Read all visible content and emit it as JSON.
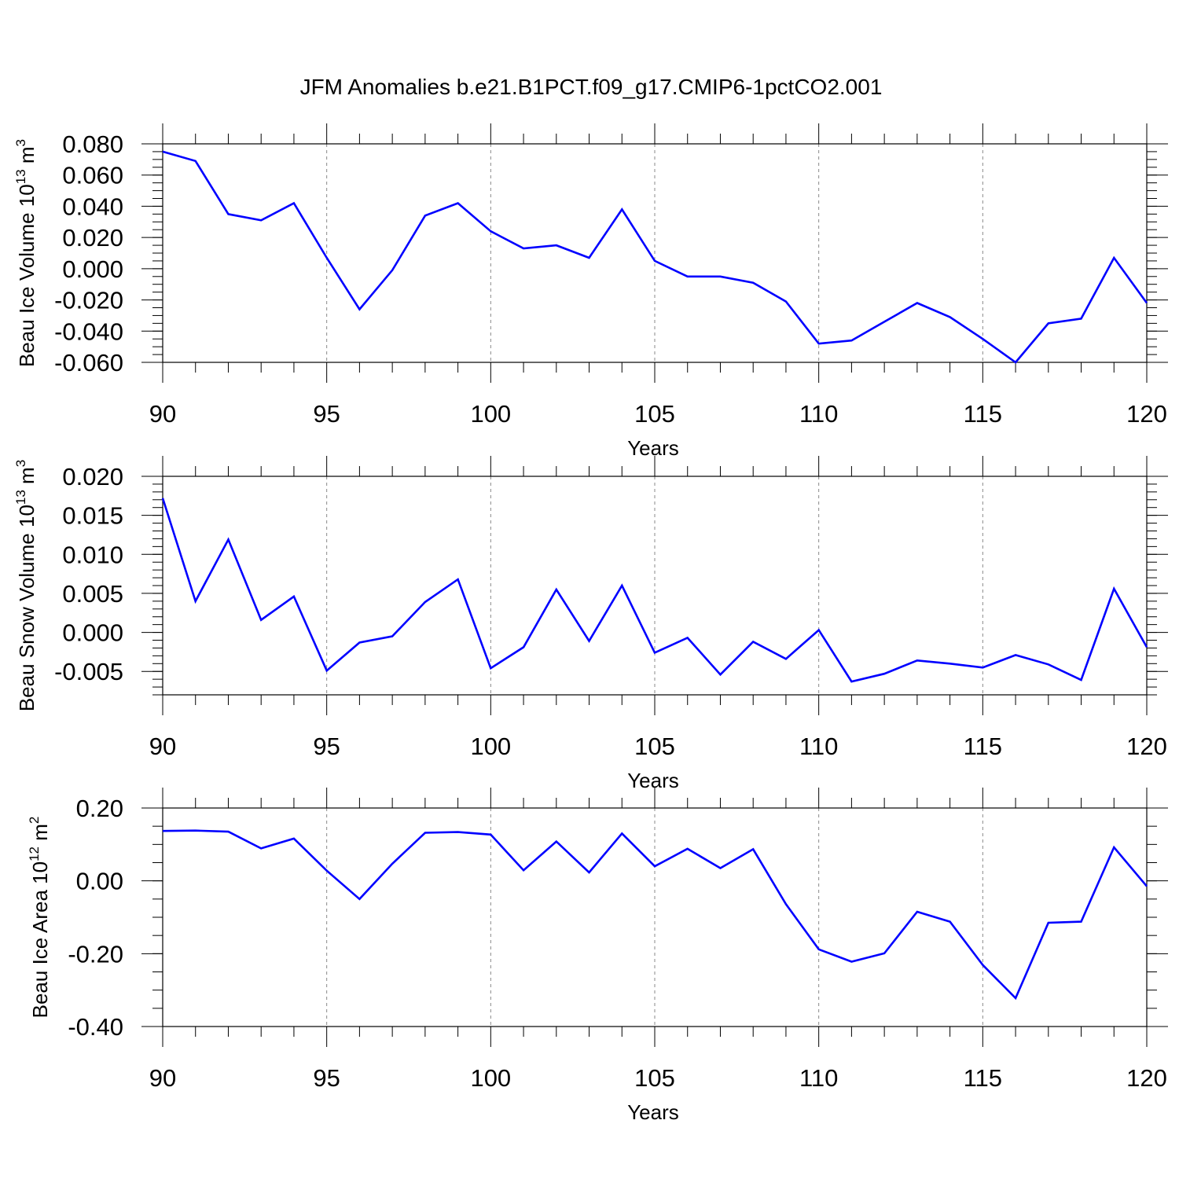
{
  "title": "JFM Anomalies b.e21.B1PCT.f09_g17.CMIP6-1pctCO2.001",
  "line_color": "#0000ff",
  "chart_data": [
    {
      "type": "line",
      "title": "JFM Anomalies b.e21.B1PCT.f09_g17.CMIP6-1pctCO2.001",
      "ylabel": "Beau Ice Volume 10",
      "ylabel_exp": "13",
      "ylabel_unit": "m",
      "ylabel_unit_exp": "3",
      "xlabel": "Years",
      "xlim": [
        90,
        120
      ],
      "ylim": [
        -0.06,
        0.08
      ],
      "x_ticks": [
        "90",
        "95",
        "100",
        "105",
        "110",
        "115",
        "120"
      ],
      "y_ticks": [
        {
          "v": 0.08,
          "label": "0.080"
        },
        {
          "v": 0.06,
          "label": "0.060"
        },
        {
          "v": 0.04,
          "label": "0.040"
        },
        {
          "v": 0.02,
          "label": "0.020"
        },
        {
          "v": 0.0,
          "label": "0.000"
        },
        {
          "v": -0.02,
          "label": "-0.020"
        },
        {
          "v": -0.04,
          "label": "-0.040"
        },
        {
          "v": -0.06,
          "label": "-0.060"
        }
      ],
      "y_minor_step": 0.005,
      "grid_x": "dashed vertical at major ticks",
      "x": [
        90,
        91,
        92,
        93,
        94,
        95,
        96,
        97,
        98,
        99,
        100,
        101,
        102,
        103,
        104,
        105,
        106,
        107,
        108,
        109,
        110,
        111,
        112,
        113,
        114,
        115,
        116,
        117,
        118,
        119,
        120
      ],
      "values": [
        0.075,
        0.069,
        0.035,
        0.031,
        0.042,
        0.007,
        -0.026,
        -0.001,
        0.034,
        0.042,
        0.024,
        0.013,
        0.015,
        0.007,
        0.038,
        0.005,
        -0.005,
        -0.005,
        -0.009,
        -0.021,
        -0.048,
        -0.046,
        -0.034,
        -0.022,
        -0.031,
        -0.045,
        -0.06,
        -0.035,
        -0.032,
        0.007,
        -0.022
      ]
    },
    {
      "type": "line",
      "ylabel": "Beau Snow Volume 10",
      "ylabel_exp": "13",
      "ylabel_unit": "m",
      "ylabel_unit_exp": "3",
      "xlabel": "Years",
      "xlim": [
        90,
        120
      ],
      "ylim": [
        -0.008,
        0.02
      ],
      "x_ticks": [
        "90",
        "95",
        "100",
        "105",
        "110",
        "115",
        "120"
      ],
      "y_ticks": [
        {
          "v": 0.02,
          "label": "0.020"
        },
        {
          "v": 0.015,
          "label": "0.015"
        },
        {
          "v": 0.01,
          "label": "0.010"
        },
        {
          "v": 0.005,
          "label": "0.005"
        },
        {
          "v": 0.0,
          "label": "0.000"
        },
        {
          "v": -0.005,
          "label": "-0.005"
        }
      ],
      "y_minor_step": 0.001,
      "grid_x": "dashed vertical at major ticks",
      "x": [
        90,
        91,
        92,
        93,
        94,
        95,
        96,
        97,
        98,
        99,
        100,
        101,
        102,
        103,
        104,
        105,
        106,
        107,
        108,
        109,
        110,
        111,
        112,
        113,
        114,
        115,
        116,
        117,
        118,
        119,
        120
      ],
      "values": [
        0.0172,
        0.004,
        0.0119,
        0.0016,
        0.0046,
        -0.0049,
        -0.0013,
        -0.0005,
        0.0039,
        0.0068,
        -0.0046,
        -0.0019,
        0.0055,
        -0.0011,
        0.006,
        -0.0026,
        -0.0007,
        -0.0054,
        -0.0012,
        -0.0034,
        0.0003,
        -0.0063,
        -0.0053,
        -0.0036,
        -0.004,
        -0.0045,
        -0.0029,
        -0.0041,
        -0.0061,
        0.0056,
        -0.0019
      ]
    },
    {
      "type": "line",
      "ylabel": "Beau Ice Area 10",
      "ylabel_exp": "12",
      "ylabel_unit": "m",
      "ylabel_unit_exp": "2",
      "xlabel": "Years",
      "xlim": [
        90,
        120
      ],
      "ylim": [
        -0.4,
        0.2
      ],
      "x_ticks": [
        "90",
        "95",
        "100",
        "105",
        "110",
        "115",
        "120"
      ],
      "y_ticks": [
        {
          "v": 0.2,
          "label": "0.20"
        },
        {
          "v": 0.0,
          "label": "0.00"
        },
        {
          "v": -0.2,
          "label": "-0.20"
        },
        {
          "v": -0.4,
          "label": "-0.40"
        }
      ],
      "y_minor_step": 0.05,
      "grid_x": "dashed vertical at major ticks",
      "x": [
        90,
        91,
        92,
        93,
        94,
        95,
        96,
        97,
        98,
        99,
        100,
        101,
        102,
        103,
        104,
        105,
        106,
        107,
        108,
        109,
        110,
        111,
        112,
        113,
        114,
        115,
        116,
        117,
        118,
        119,
        120
      ],
      "values": [
        0.137,
        0.138,
        0.135,
        0.089,
        0.116,
        0.028,
        -0.05,
        0.047,
        0.132,
        0.134,
        0.127,
        0.029,
        0.108,
        0.023,
        0.13,
        0.04,
        0.088,
        0.035,
        0.087,
        -0.064,
        -0.188,
        -0.222,
        -0.199,
        -0.085,
        -0.112,
        -0.231,
        -0.322,
        -0.115,
        -0.112,
        0.092,
        -0.015
      ]
    }
  ]
}
